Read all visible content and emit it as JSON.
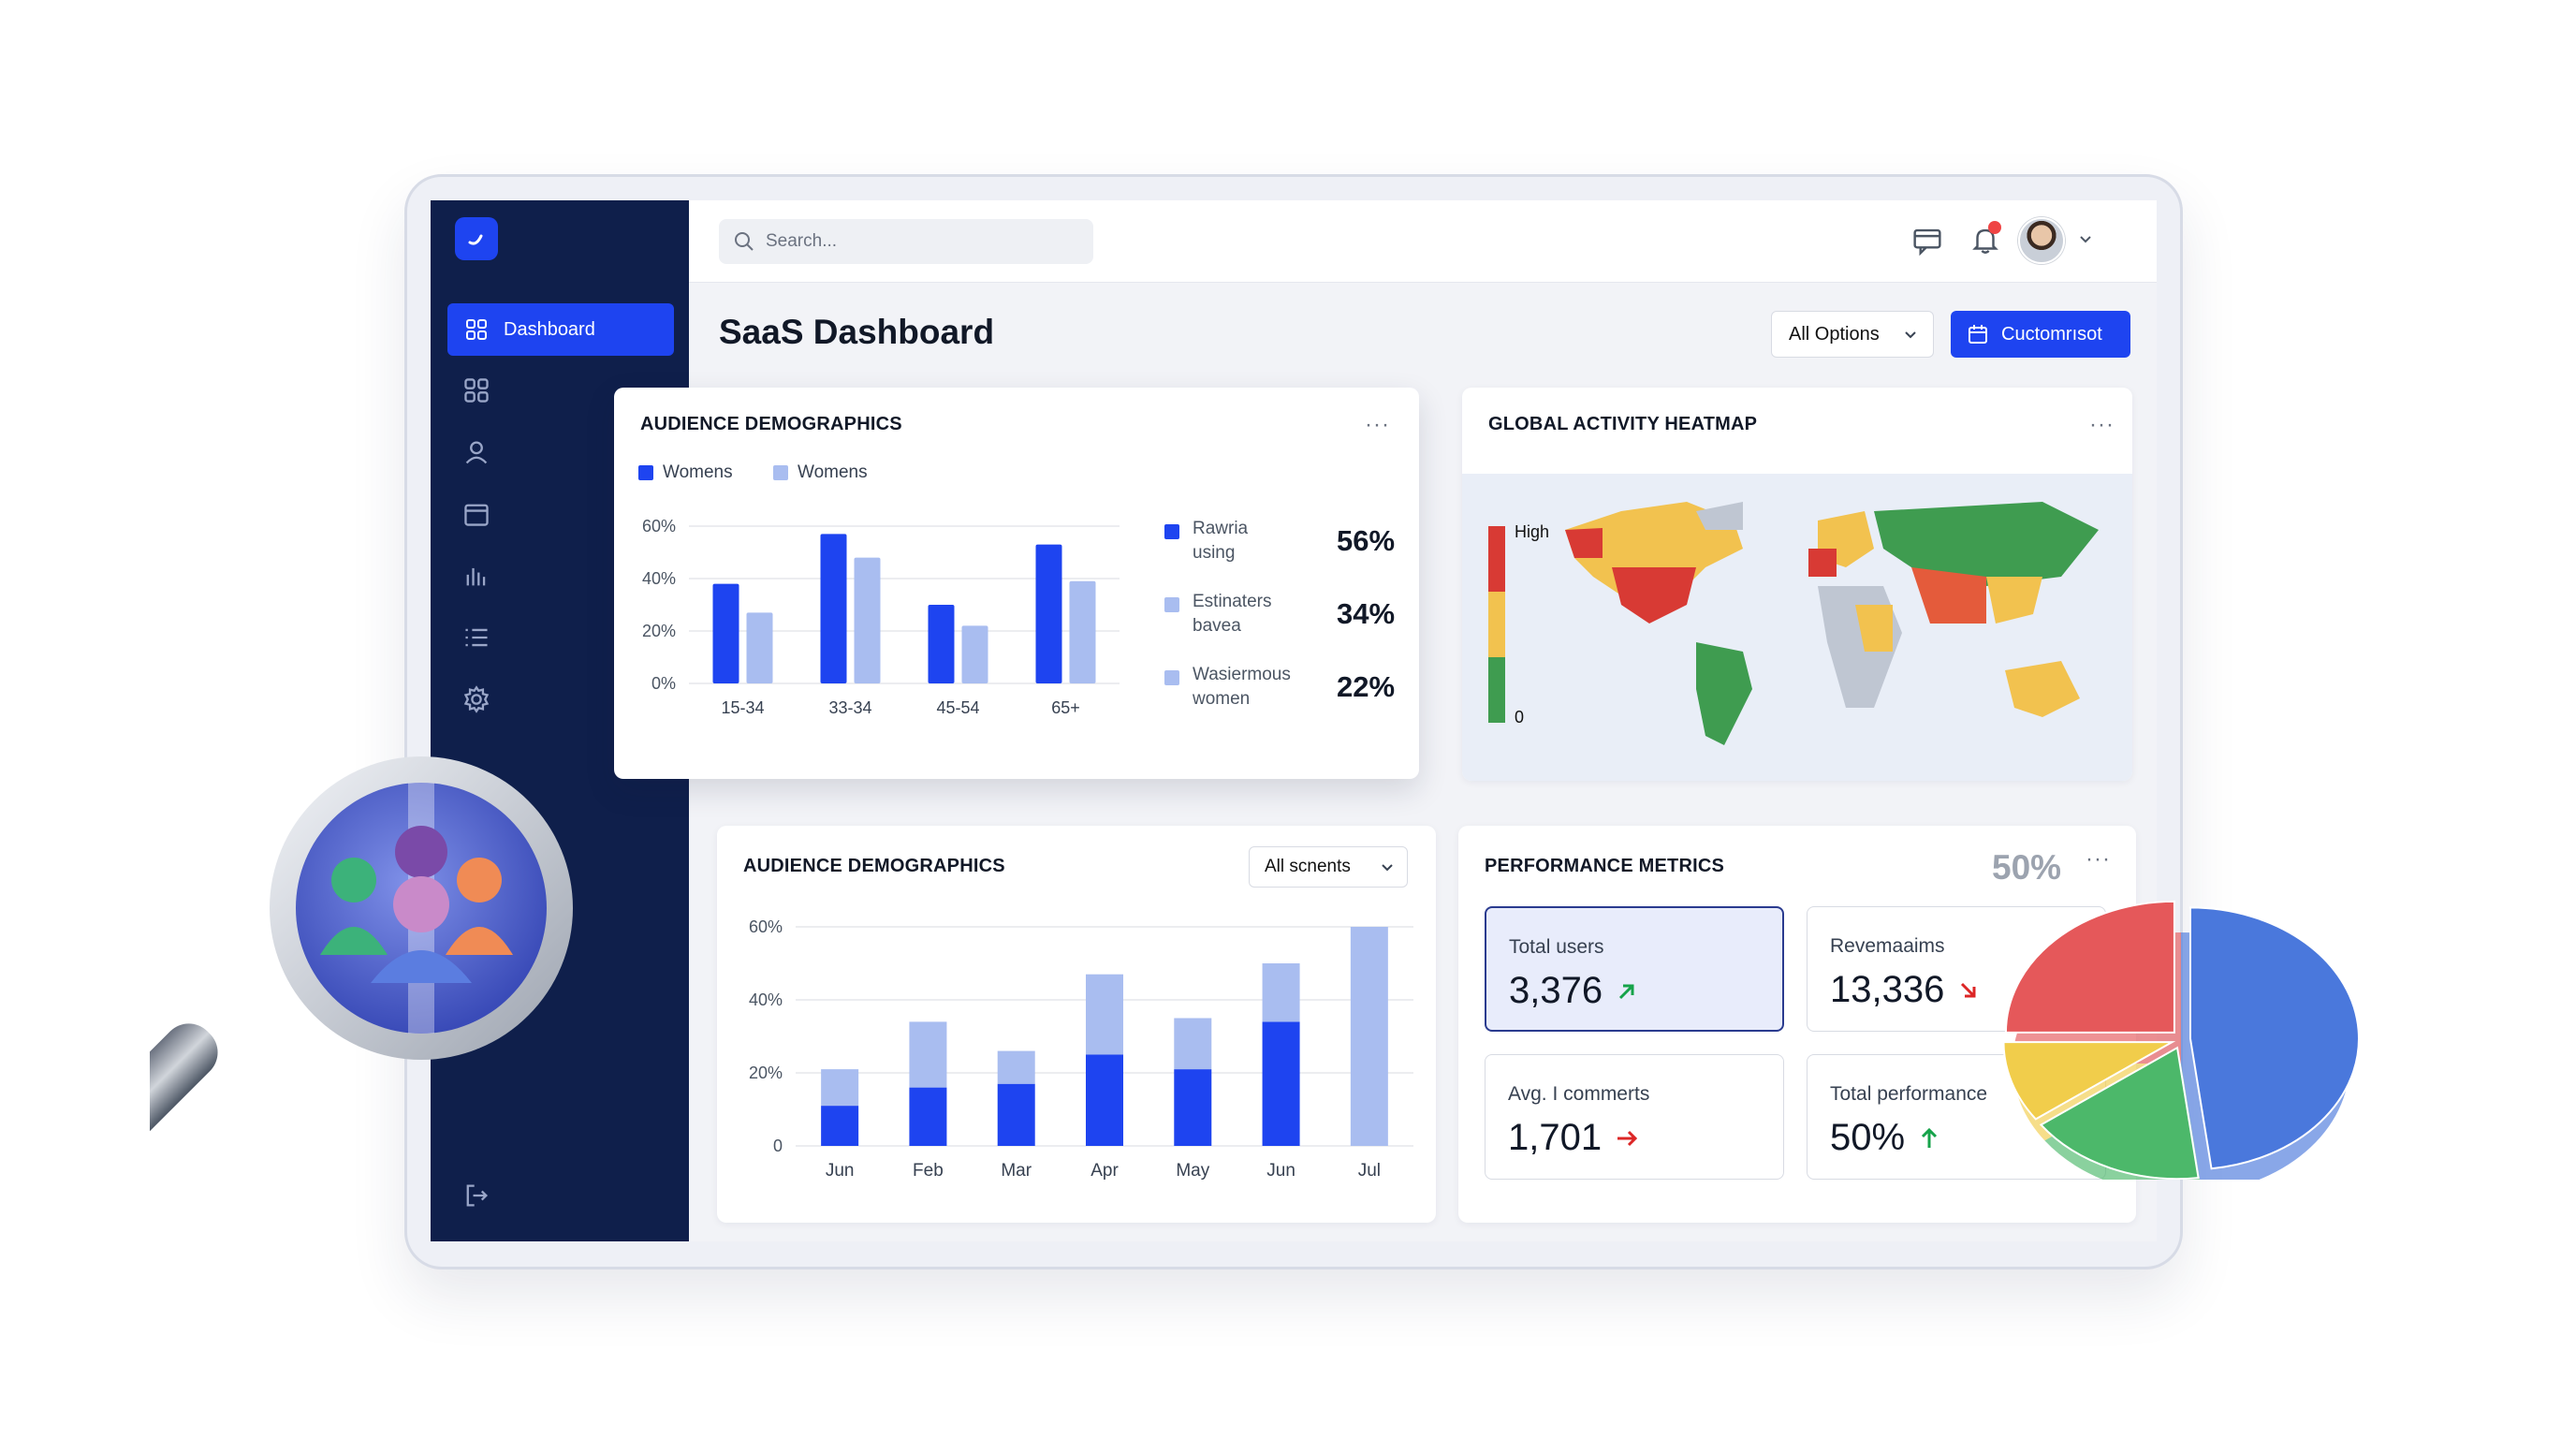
{
  "search": {
    "placeholder": "Search..."
  },
  "sidebar": {
    "active_label": "Dashboard",
    "icons": [
      "grid-icon",
      "user-icon",
      "calendar-icon",
      "bar-chart-icon",
      "list-icon",
      "gear-icon"
    ]
  },
  "header": {
    "title": "SaaS Dashboard",
    "dropdown_label": "All Options",
    "primary_button_label": "Cuctomrısot"
  },
  "demographics_top": {
    "title": "AUDIENCE DEMOGRAPHICS",
    "more": "···",
    "legend": [
      "Womens",
      "Womens"
    ],
    "stats": [
      {
        "label_line1": "Rawria",
        "label_line2": "using",
        "value": "56%"
      },
      {
        "label_line1": "Estinaters",
        "label_line2": "bavea",
        "value": "34%"
      },
      {
        "label_line1": "Wasiermous",
        "label_line2": "women",
        "value": "22%"
      }
    ]
  },
  "heatmap": {
    "title": "GLOBAL ACTIVITY HEATMAP",
    "more": "···",
    "scale_high": "High",
    "scale_low": "0"
  },
  "demographics_bottom": {
    "title": "AUDIENCE DEMOGRAPHICS",
    "filter_label": "All scnents"
  },
  "performance": {
    "title": "PERFORMANCE METRICS",
    "more": "···",
    "overlay_value": "50%",
    "metrics": [
      {
        "label": "Total users",
        "value": "3,376"
      },
      {
        "label": "Revemaaims",
        "value": "13,336"
      },
      {
        "label": "Avg. I commerts",
        "value": "1,701"
      },
      {
        "label": "Total performance",
        "value": "50%"
      }
    ]
  },
  "colors": {
    "primary": "#1e44f0",
    "primary_light": "#a9bdf0",
    "sidebar": "#0f1f4b",
    "up": "#16a34a",
    "down": "#dc2626"
  },
  "chart_data": [
    {
      "type": "bar",
      "categories": [
        "15-34",
        "33-34",
        "45-54",
        "65+"
      ],
      "series": [
        {
          "values": [
            38,
            57,
            30,
            53
          ]
        },
        {
          "values": [
            27,
            48,
            22,
            39
          ]
        }
      ],
      "yticks": [
        "0%",
        "20%",
        "40%",
        "60%"
      ],
      "ylim": [
        0,
        60
      ],
      "grid": true
    },
    {
      "type": "bar",
      "stacked": true,
      "categories": [
        "Jun",
        "Feb",
        "Mar",
        "Apr",
        "May",
        "Jun",
        "Jul"
      ],
      "series": [
        {
          "values": [
            11,
            16,
            17,
            25,
            21,
            34,
            0
          ]
        },
        {
          "values": [
            10,
            18,
            9,
            22,
            14,
            16,
            60
          ]
        }
      ],
      "yticks": [
        "0",
        "20%",
        "40%",
        "60%"
      ],
      "ylim": [
        0,
        60
      ],
      "grid": true
    },
    {
      "type": "pie",
      "values": [
        48,
        17,
        10,
        25
      ],
      "colors": [
        "#4a78dc",
        "#4cb86a",
        "#f1cd4b",
        "#e5585a"
      ]
    }
  ]
}
